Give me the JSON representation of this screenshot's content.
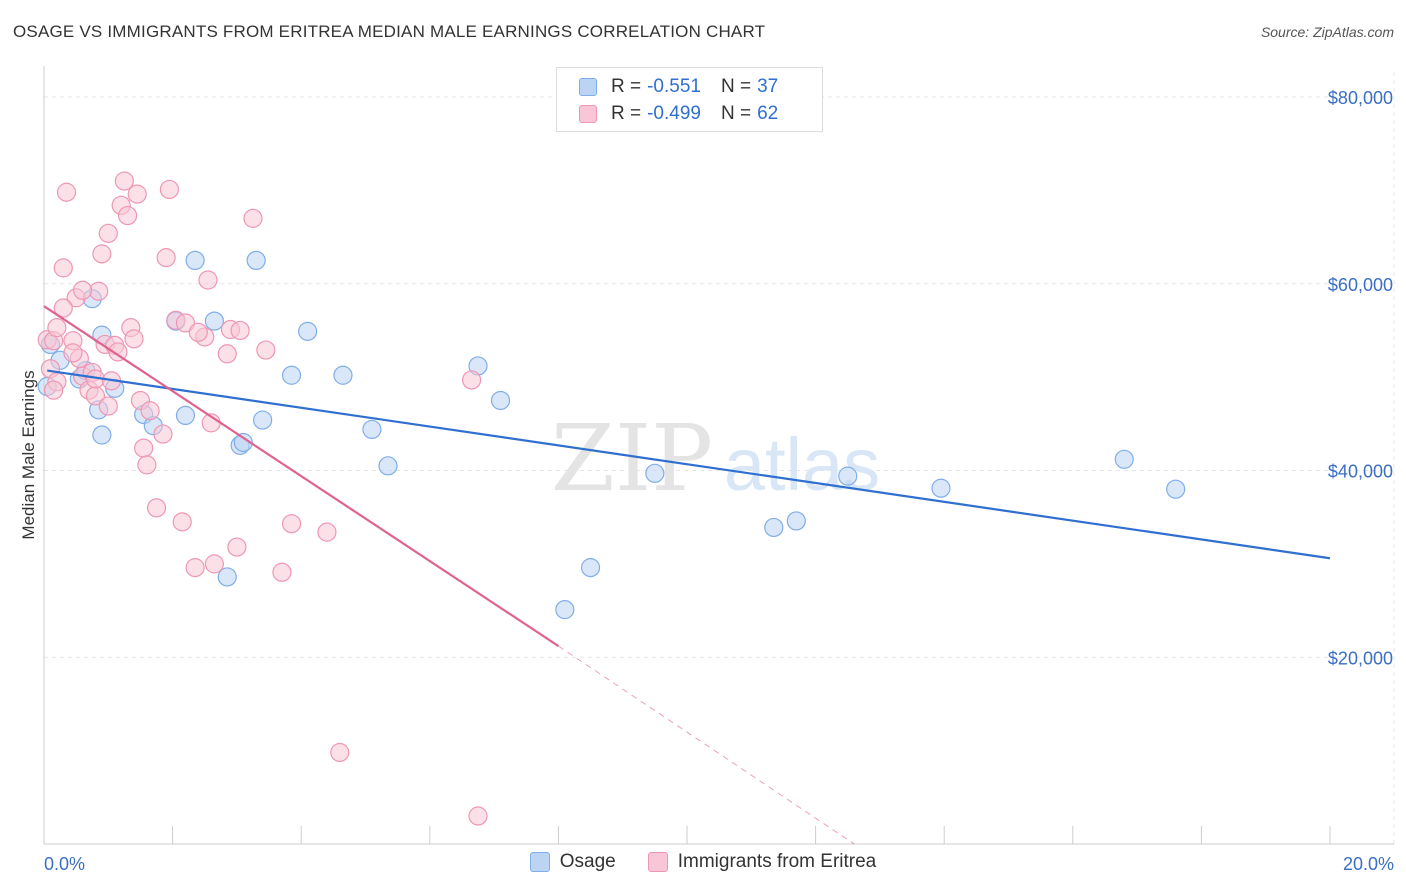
{
  "title": "OSAGE VS IMMIGRANTS FROM ERITREA MEDIAN MALE EARNINGS CORRELATION CHART",
  "source": "Source: ZipAtlas.com",
  "watermark": {
    "zip": "ZIP",
    "atlas": "atlas"
  },
  "legend": {
    "osage": {
      "r_label": "R =",
      "r_value": "-0.551",
      "n_label": "N =",
      "n_value": "37"
    },
    "eritrea": {
      "r_label": "R =",
      "r_value": "-0.499",
      "n_label": "N =",
      "n_value": "62"
    }
  },
  "colors": {
    "osage_fill": "#bcd4f3",
    "osage_stroke": "#7faee8",
    "osage_line": "#2f6fd0",
    "eritrea_fill": "#f8c6d6",
    "eritrea_stroke": "#ee97b4",
    "eritrea_line": "#e0628f",
    "grid": "#e6e6e6",
    "tick": "#3a6fc4"
  },
  "chart_data": {
    "type": "scatter",
    "title": "OSAGE VS IMMIGRANTS FROM ERITREA MEDIAN MALE EARNINGS CORRELATION CHART",
    "xlabel": "",
    "ylabel": "Median Male Earnings",
    "xlim": [
      0,
      21
    ],
    "ylim": [
      0,
      82000
    ],
    "x_tick_labels": [
      "0.0%",
      "20.0%"
    ],
    "y_ticks": [
      20000,
      40000,
      60000,
      80000
    ],
    "y_tick_labels": [
      "$20,000",
      "$40,000",
      "$60,000",
      "$80,000"
    ],
    "grid": true,
    "legend_position": "top-center",
    "series": [
      {
        "name": "Osage",
        "trend": {
          "x0": 0.05,
          "y0": 50700,
          "x1": 20.0,
          "y1": 30600
        },
        "points": [
          [
            0.1,
            53500
          ],
          [
            0.25,
            51800
          ],
          [
            0.55,
            49800
          ],
          [
            0.75,
            58400
          ],
          [
            0.9,
            54500
          ],
          [
            0.65,
            50700
          ],
          [
            0.85,
            46500
          ],
          [
            0.9,
            43800
          ],
          [
            1.1,
            48800
          ],
          [
            1.55,
            46000
          ],
          [
            1.7,
            44800
          ],
          [
            2.05,
            56000
          ],
          [
            2.2,
            45900
          ],
          [
            2.35,
            62500
          ],
          [
            2.65,
            56000
          ],
          [
            2.85,
            28600
          ],
          [
            3.05,
            42700
          ],
          [
            3.1,
            43000
          ],
          [
            3.3,
            62500
          ],
          [
            3.4,
            45400
          ],
          [
            3.85,
            50200
          ],
          [
            4.1,
            54900
          ],
          [
            4.65,
            50200
          ],
          [
            5.1,
            44400
          ],
          [
            5.35,
            40500
          ],
          [
            6.75,
            51200
          ],
          [
            7.1,
            47500
          ],
          [
            8.1,
            25100
          ],
          [
            8.5,
            29600
          ],
          [
            9.5,
            39700
          ],
          [
            11.35,
            33900
          ],
          [
            11.7,
            34600
          ],
          [
            12.5,
            39400
          ],
          [
            13.95,
            38100
          ],
          [
            16.8,
            41200
          ],
          [
            17.6,
            38000
          ],
          [
            0.05,
            49000
          ]
        ]
      },
      {
        "name": "Immigrants from Eritrea",
        "trend": {
          "x0": 0.0,
          "y0": 57600,
          "x1": 8.0,
          "y1": 21200,
          "dash_x1": 12.6,
          "dash_y1": 0
        },
        "points": [
          [
            0.05,
            54000
          ],
          [
            0.1,
            50900
          ],
          [
            0.15,
            53900
          ],
          [
            0.2,
            55300
          ],
          [
            0.2,
            49500
          ],
          [
            0.3,
            61700
          ],
          [
            0.35,
            69800
          ],
          [
            0.45,
            53900
          ],
          [
            0.5,
            58500
          ],
          [
            0.55,
            52000
          ],
          [
            0.6,
            50100
          ],
          [
            0.7,
            48600
          ],
          [
            0.75,
            50500
          ],
          [
            0.8,
            48000
          ],
          [
            0.85,
            59200
          ],
          [
            0.8,
            49800
          ],
          [
            0.9,
            63200
          ],
          [
            0.95,
            53500
          ],
          [
            1.0,
            65400
          ],
          [
            1.05,
            49600
          ],
          [
            1.1,
            53400
          ],
          [
            1.15,
            52700
          ],
          [
            1.2,
            68400
          ],
          [
            1.25,
            71000
          ],
          [
            1.3,
            67300
          ],
          [
            1.35,
            55300
          ],
          [
            1.4,
            54100
          ],
          [
            1.45,
            69600
          ],
          [
            1.5,
            47500
          ],
          [
            1.55,
            42400
          ],
          [
            1.6,
            40600
          ],
          [
            1.65,
            46400
          ],
          [
            1.75,
            36000
          ],
          [
            1.85,
            43900
          ],
          [
            1.9,
            62800
          ],
          [
            1.95,
            70100
          ],
          [
            2.05,
            56100
          ],
          [
            2.15,
            34500
          ],
          [
            2.2,
            55800
          ],
          [
            2.35,
            29600
          ],
          [
            2.5,
            54300
          ],
          [
            2.55,
            60400
          ],
          [
            2.6,
            45100
          ],
          [
            2.65,
            30000
          ],
          [
            2.85,
            52500
          ],
          [
            2.9,
            55100
          ],
          [
            3.0,
            31800
          ],
          [
            3.05,
            55000
          ],
          [
            3.25,
            67000
          ],
          [
            3.45,
            52900
          ],
          [
            3.7,
            29100
          ],
          [
            3.85,
            34300
          ],
          [
            4.4,
            33400
          ],
          [
            4.6,
            9800
          ],
          [
            6.65,
            49700
          ],
          [
            6.75,
            3000
          ],
          [
            0.3,
            57400
          ],
          [
            0.45,
            52600
          ],
          [
            0.15,
            48600
          ],
          [
            0.6,
            59300
          ],
          [
            1.0,
            46900
          ],
          [
            2.4,
            54800
          ]
        ]
      }
    ]
  }
}
